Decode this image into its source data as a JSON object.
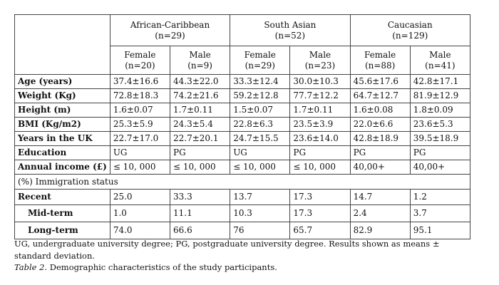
{
  "groups": [
    {
      "name": "African-Caribbean",
      "n": "(n=29)"
    },
    {
      "name": "South Asian",
      "n": "(n=52)"
    },
    {
      "name": "Caucasian",
      "n": "(n=129)"
    }
  ],
  "subheaders": [
    {
      "sex": "Female",
      "n": "(n=20)"
    },
    {
      "sex": "Male",
      "n": "(n=9)"
    },
    {
      "sex": "Female",
      "n": "(n=29)"
    },
    {
      "sex": "Male",
      "n": "(n=23)"
    },
    {
      "sex": "Female",
      "n": "(n=88)"
    },
    {
      "sex": "Male",
      "n": "(n=41)"
    }
  ],
  "rows": [
    {
      "label": "Age (years)",
      "values": [
        "37.4±16.6",
        "44.3±22.0",
        "33.3±12.4",
        "30.0±10.3",
        "45.6±17.6",
        "42.8±17.1"
      ]
    },
    {
      "label": "Weight (Kg)",
      "values": [
        "72.8±18.3",
        "74.2±21.6",
        "59.2±12.8",
        "77.7±12.2",
        "64.7±12.7",
        "81.9±12.9"
      ]
    },
    {
      "label": "Height (m)",
      "values": [
        "1.6±0.07",
        "1.7±0.11",
        "1.5±0.07",
        "1.7±0.11",
        "1.6±0.08",
        "1.8±0.09"
      ]
    },
    {
      "label": "BMI (Kg/m2)",
      "values": [
        "25.3±5.9",
        "24.3±5.4",
        "22.8±6.3",
        "23.5±3.9",
        "22.0±6.6",
        "23.6±5.3"
      ]
    },
    {
      "label": "Years in the UK",
      "values": [
        "22.7±17.0",
        "22.7±20.1",
        "24.7±15.5",
        "23.6±14.0",
        "42.8±18.9",
        "39.5±18.9"
      ]
    },
    {
      "label": "Education",
      "values": [
        "UG",
        "PG",
        "UG",
        "PG",
        "PG",
        "PG"
      ]
    },
    {
      "label": "Annual income (£)",
      "values": [
        "≤ 10, 000",
        "≤ 10, 000",
        "≤ 10, 000",
        "≤ 10, 000",
        "40,00+",
        "40,00+"
      ]
    }
  ],
  "immigration": {
    "header": "(%) Immigration status",
    "rows": [
      {
        "label": "Recent",
        "values": [
          "25.0",
          "33.3",
          "13.7",
          "17.3",
          "14.7",
          "1.2"
        ]
      },
      {
        "label": "Mid-term",
        "values": [
          "1.0",
          "11.1",
          "10.3",
          "17.3",
          "2.4",
          "3.7"
        ]
      },
      {
        "label": "Long-term",
        "values": [
          "74.0",
          "66.6",
          "76",
          "65.7",
          "82.9",
          "95.1"
        ]
      }
    ]
  },
  "footnote": "UG, undergraduate university degree; PG, postgraduate university degree. Results shown as means ± standard deviation.",
  "caption": {
    "label": "Table 2.",
    "text": " Demographic characteristics of the study participants."
  }
}
